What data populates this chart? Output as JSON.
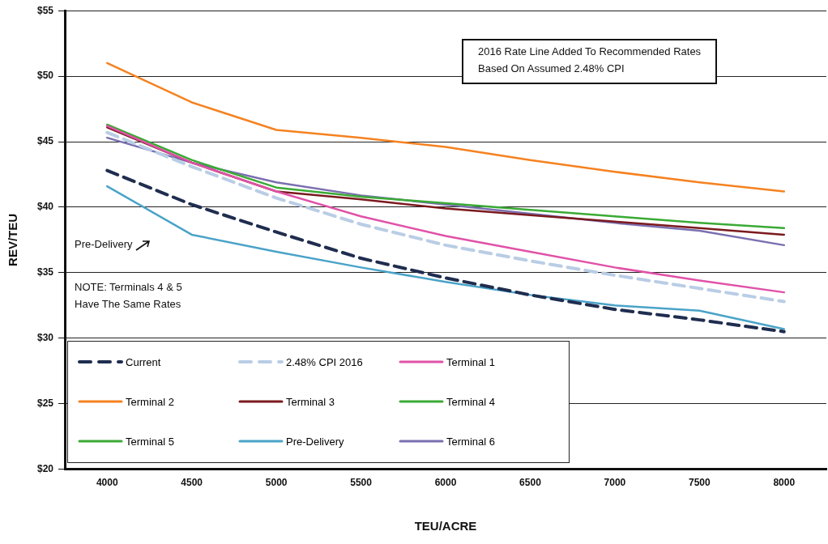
{
  "chart_data": {
    "type": "line",
    "xlabel": "TEU/ACRE",
    "ylabel": "REV/TEU",
    "categories": [
      "4000",
      "4500",
      "5000",
      "5500",
      "6000",
      "6500",
      "7000",
      "7500",
      "8000"
    ],
    "ylim": [
      20,
      55
    ],
    "yticks": [
      {
        "value": 20,
        "label": "$20"
      },
      {
        "value": 25,
        "label": "$25"
      },
      {
        "value": 30,
        "label": "$30"
      },
      {
        "value": 35,
        "label": "$35"
      },
      {
        "value": 40,
        "label": "$40"
      },
      {
        "value": 45,
        "label": "$45"
      },
      {
        "value": 50,
        "label": "$50"
      },
      {
        "value": 55,
        "label": "$55"
      }
    ],
    "grid": "y",
    "legend": "bottom left",
    "marker": "none",
    "annotations": [
      "2016 Rate Line Added To Recommended Rates\nBased On Assumed 2.48% CPI",
      "Pre-Delivery",
      "NOTE: Terminals 4 & 5\nHave The Same Rates"
    ],
    "series": [
      {
        "name": "Current",
        "color": "#1f2d4f",
        "line_style": "dashed",
        "values": [
          42.8,
          40.2,
          38.1,
          36.1,
          34.6,
          33.3,
          32.2,
          31.4,
          30.5
        ]
      },
      {
        "name": "2.48% CPI 2016",
        "color": "#b9cde5",
        "line_style": "dashed",
        "values": [
          45.7,
          43.1,
          40.7,
          38.7,
          37.1,
          35.9,
          34.8,
          33.8,
          32.8
        ]
      },
      {
        "name": "Terminal 1",
        "color": "#e052a8",
        "values": [
          46.2,
          43.4,
          41.2,
          39.3,
          37.8,
          36.6,
          35.4,
          34.4,
          33.5
        ]
      },
      {
        "name": "Terminal 2",
        "color": "#f58220",
        "values": [
          51.0,
          48.0,
          45.9,
          45.3,
          44.6,
          43.6,
          42.7,
          41.9,
          41.2
        ]
      },
      {
        "name": "Terminal 3",
        "color": "#7b1a1f",
        "values": [
          46.1,
          43.4,
          41.2,
          40.6,
          39.9,
          39.4,
          38.9,
          38.4,
          37.9
        ]
      },
      {
        "name": "Terminal 4",
        "color": "#3aaa35",
        "values": [
          46.3,
          43.6,
          41.5,
          40.8,
          40.3,
          39.8,
          39.3,
          38.8,
          38.4
        ]
      },
      {
        "name": "Terminal 5",
        "color": "#3aaa35",
        "values": [
          null,
          null,
          null,
          null,
          null,
          null,
          null,
          null,
          null
        ]
      },
      {
        "name": "Pre-Delivery",
        "color": "#4aa3c8",
        "values": [
          41.6,
          37.9,
          36.6,
          35.4,
          34.3,
          33.3,
          32.5,
          32.1,
          30.7
        ]
      },
      {
        "name": "Terminal 6",
        "color": "#7a6fb0",
        "values": [
          45.3,
          43.4,
          41.9,
          40.9,
          40.2,
          39.5,
          38.8,
          38.2,
          37.1
        ]
      }
    ]
  }
}
